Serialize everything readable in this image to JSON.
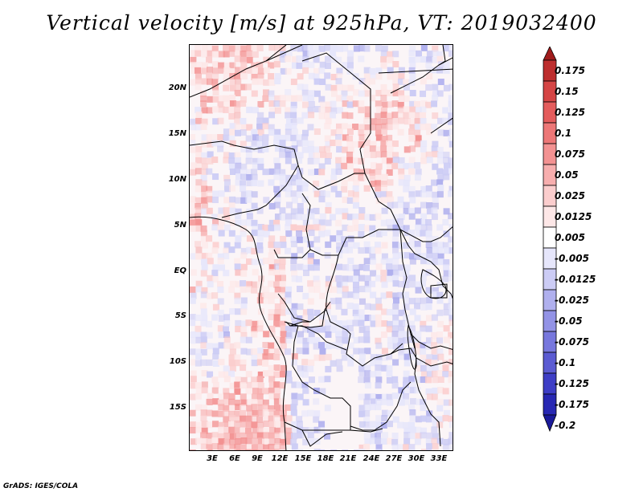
{
  "title": "Vertical velocity [m/s] at 925hPa, VT: 2019032400",
  "footer": "GrADS: IGES/COLA",
  "lat_ticks": [
    "20N",
    "15N",
    "10N",
    "5N",
    "EQ",
    "5S",
    "10S",
    "15S"
  ],
  "lon_ticks": [
    "3E",
    "6E",
    "9E",
    "12E",
    "15E",
    "18E",
    "21E",
    "24E",
    "27E",
    "30E",
    "33E"
  ],
  "colorbar": {
    "labels": [
      "0.175",
      "0.15",
      "0.125",
      "0.1",
      "0.075",
      "0.05",
      "0.025",
      "0.0125",
      "0.005",
      "-0.005",
      "-0.0125",
      "-0.025",
      "-0.05",
      "-0.075",
      "-0.1",
      "-0.125",
      "-0.175",
      "-0.2"
    ],
    "colors": [
      "#a01c1c",
      "#bd2e2e",
      "#d54545",
      "#e45c5c",
      "#ed7777",
      "#f39292",
      "#f7aeae",
      "#fbcdcd",
      "#fde7e7",
      "#ffffff",
      "#e6e6fb",
      "#ccccf5",
      "#b0b0ee",
      "#9393e6",
      "#7777dd",
      "#5b5bd2",
      "#3e3ec6",
      "#2828b3",
      "#1a1a9a"
    ]
  }
}
